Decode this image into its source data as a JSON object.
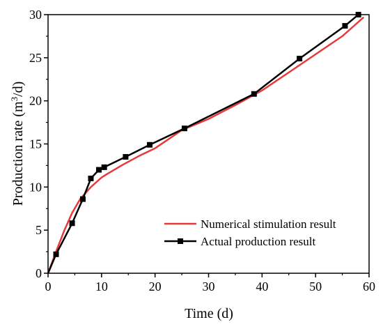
{
  "chart_data": {
    "type": "line",
    "xlabel": "Time (d)",
    "ylabel": {
      "prefix": "Production rate (m",
      "superscript": "3",
      "suffix": "/d)"
    },
    "xlim": [
      0,
      60
    ],
    "ylim": [
      0,
      30
    ],
    "xticks": [
      0,
      10,
      20,
      30,
      40,
      50,
      60
    ],
    "yticks": [
      0,
      5,
      10,
      15,
      20,
      25,
      30
    ],
    "grid": false,
    "legend_position": "bottom-right",
    "series": [
      {
        "name": "Numerical stimulation result",
        "color": "#e8393a",
        "marker": "none",
        "x": [
          0,
          1.5,
          3,
          4.5,
          6,
          8,
          10,
          11,
          14,
          17,
          20,
          25,
          30,
          35,
          40,
          45,
          50,
          55,
          59
        ],
        "y": [
          0,
          2.5,
          4.9,
          7.0,
          8.6,
          10.0,
          11.1,
          11.5,
          12.6,
          13.6,
          14.5,
          16.6,
          17.9,
          19.5,
          21.2,
          23.3,
          25.4,
          27.5,
          29.7
        ]
      },
      {
        "name": "Actual production result",
        "color": "#000000",
        "marker": "square",
        "x": [
          0,
          1.5,
          4.5,
          6.5,
          8,
          9.5,
          10.5,
          14.5,
          19,
          25.5,
          38.5,
          47,
          55.5,
          58
        ],
        "y": [
          0,
          2.2,
          5.8,
          8.6,
          11.0,
          12.0,
          12.3,
          13.5,
          14.9,
          16.8,
          20.8,
          24.9,
          28.7,
          30.0
        ]
      }
    ]
  }
}
